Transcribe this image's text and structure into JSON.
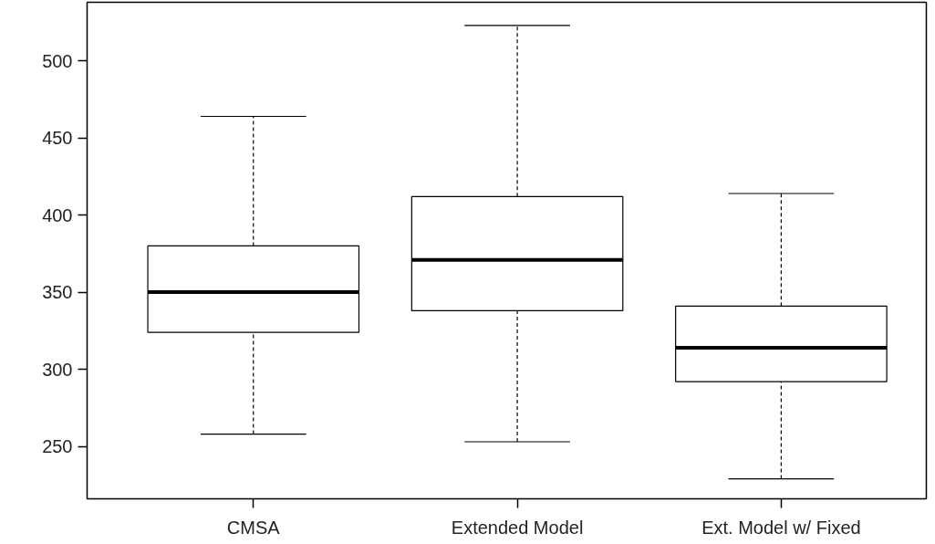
{
  "chart_data": {
    "type": "box",
    "categories": [
      "CMSA",
      "Extended Model",
      "Ext. Model w/ Fixed"
    ],
    "boxes": [
      {
        "low": 258,
        "q1": 324,
        "median": 350,
        "q3": 380,
        "high": 464
      },
      {
        "low": 253,
        "q1": 338,
        "median": 371,
        "q3": 412,
        "high": 523
      },
      {
        "low": 229,
        "q1": 292,
        "median": 314,
        "q3": 341,
        "high": 414
      }
    ],
    "color": "#ffffff",
    "ylim": [
      216,
      538
    ],
    "yticks": [
      250,
      300,
      350,
      400,
      450,
      500
    ],
    "grid": false,
    "line_style": "dashed"
  }
}
